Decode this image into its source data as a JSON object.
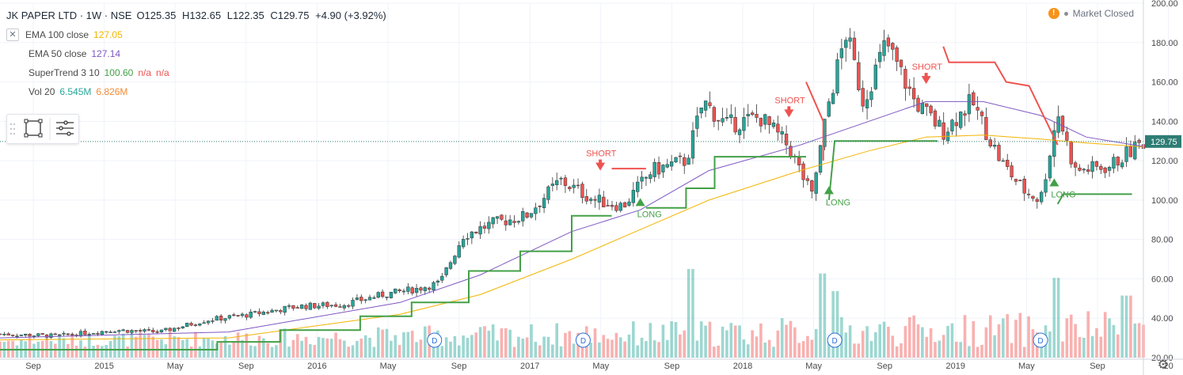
{
  "header": {
    "symbol": "JK PAPER LTD · 1W · NSE",
    "ohlc": {
      "o": "O125.35",
      "h": "H132.65",
      "l": "L122.35",
      "c": "C129.75",
      "chg": "+4.90 (+3.92%)"
    },
    "market_status": "Market Closed"
  },
  "indicators": [
    {
      "name": "EMA 100 close",
      "values": [
        "127.05"
      ],
      "colors": [
        "#f2b400"
      ]
    },
    {
      "name": "EMA 50 close",
      "values": [
        "127.14"
      ],
      "colors": [
        "#7e57c2"
      ]
    },
    {
      "name": "SuperTrend 3 10",
      "values": [
        "100.60",
        "n/a",
        "n/a"
      ],
      "colors": [
        "#43a047",
        "#ef5350",
        "#ef5350"
      ]
    },
    {
      "name": "Vol 20",
      "values": [
        "6.545M",
        "6.826M"
      ],
      "colors": [
        "#26a69a",
        "#f28b36"
      ]
    }
  ],
  "colors": {
    "up": "#26a69a",
    "down": "#ef5350",
    "ema100": "#f2b400",
    "ema50": "#7e57c2",
    "st_up": "#43a047",
    "st_down": "#ef5350",
    "grid": "#f0f3fa",
    "price_tag": "#2e7d74"
  },
  "icons": [
    "rectangle-draw-icon",
    "list-icon",
    "settings-gear-icon",
    "warning-icon"
  ],
  "chart_data": {
    "type": "candlestick",
    "y_axis": {
      "ticks": [
        "20.00",
        "40.00",
        "60.00",
        "80.00",
        "100.00",
        "120.00",
        "140.00",
        "160.00",
        "180.00",
        "200.00"
      ],
      "range": [
        20,
        200
      ],
      "current_price": "129.75"
    },
    "x_axis": {
      "ticks": [
        "Sep",
        "2015",
        "May",
        "Sep",
        "2016",
        "May",
        "Sep",
        "2017",
        "May",
        "Sep",
        "2018",
        "May",
        "Sep",
        "2019",
        "May",
        "Sep",
        "20"
      ]
    },
    "price_path": [
      {
        "t": 0,
        "v": 32
      },
      {
        "t": 0.05,
        "v": 31
      },
      {
        "t": 0.1,
        "v": 34
      },
      {
        "t": 0.14,
        "v": 33
      },
      {
        "t": 0.18,
        "v": 39
      },
      {
        "t": 0.22,
        "v": 42
      },
      {
        "t": 0.26,
        "v": 46
      },
      {
        "t": 0.3,
        "v": 47
      },
      {
        "t": 0.335,
        "v": 52
      },
      {
        "t": 0.365,
        "v": 55
      },
      {
        "t": 0.385,
        "v": 58
      },
      {
        "t": 0.405,
        "v": 82
      },
      {
        "t": 0.43,
        "v": 88
      },
      {
        "t": 0.46,
        "v": 92
      },
      {
        "t": 0.49,
        "v": 110
      },
      {
        "t": 0.52,
        "v": 100
      },
      {
        "t": 0.545,
        "v": 97
      },
      {
        "t": 0.57,
        "v": 115
      },
      {
        "t": 0.6,
        "v": 120
      },
      {
        "t": 0.615,
        "v": 150
      },
      {
        "t": 0.635,
        "v": 138
      },
      {
        "t": 0.665,
        "v": 142
      },
      {
        "t": 0.69,
        "v": 127
      },
      {
        "t": 0.71,
        "v": 102
      },
      {
        "t": 0.725,
        "v": 150
      },
      {
        "t": 0.74,
        "v": 185
      },
      {
        "t": 0.755,
        "v": 150
      },
      {
        "t": 0.775,
        "v": 180
      },
      {
        "t": 0.8,
        "v": 150
      },
      {
        "t": 0.825,
        "v": 135
      },
      {
        "t": 0.85,
        "v": 150
      },
      {
        "t": 0.875,
        "v": 120
      },
      {
        "t": 0.895,
        "v": 105
      },
      {
        "t": 0.91,
        "v": 100
      },
      {
        "t": 0.925,
        "v": 145
      },
      {
        "t": 0.94,
        "v": 115
      },
      {
        "t": 0.97,
        "v": 117
      },
      {
        "t": 1.0,
        "v": 129.75
      }
    ],
    "supertrend": [
      {
        "segment": "up",
        "points": [
          [
            0,
            24
          ],
          [
            0.19,
            24
          ],
          [
            0.19,
            28
          ],
          [
            0.245,
            28
          ],
          [
            0.245,
            34
          ],
          [
            0.315,
            34
          ],
          [
            0.315,
            41
          ],
          [
            0.36,
            41
          ],
          [
            0.36,
            48
          ],
          [
            0.41,
            48
          ],
          [
            0.41,
            64
          ],
          [
            0.455,
            64
          ],
          [
            0.455,
            74
          ],
          [
            0.5,
            74
          ],
          [
            0.5,
            92
          ],
          [
            0.535,
            92
          ]
        ]
      },
      {
        "segment": "down",
        "points": [
          [
            0.535,
            116
          ],
          [
            0.565,
            116
          ]
        ]
      },
      {
        "segment": "up",
        "points": [
          [
            0.565,
            96
          ],
          [
            0.6,
            96
          ],
          [
            0.6,
            106
          ],
          [
            0.625,
            106
          ],
          [
            0.625,
            122
          ],
          [
            0.705,
            122
          ]
        ]
      },
      {
        "segment": "down",
        "points": [
          [
            0.705,
            160
          ],
          [
            0.72,
            140
          ],
          [
            0.72,
            120
          ]
        ]
      },
      {
        "segment": "up",
        "points": [
          [
            0.725,
            100
          ],
          [
            0.73,
            130
          ],
          [
            0.82,
            130
          ]
        ]
      },
      {
        "segment": "down",
        "points": [
          [
            0.825,
            178
          ],
          [
            0.83,
            170
          ],
          [
            0.87,
            170
          ],
          [
            0.88,
            160
          ],
          [
            0.9,
            158
          ],
          [
            0.925,
            128
          ]
        ]
      },
      {
        "segment": "up",
        "points": [
          [
            0.925,
            98
          ],
          [
            0.93,
            103
          ],
          [
            0.99,
            103
          ]
        ]
      }
    ],
    "ema50": [
      [
        0,
        30
      ],
      [
        0.2,
        33
      ],
      [
        0.35,
        48
      ],
      [
        0.42,
        62
      ],
      [
        0.5,
        84
      ],
      [
        0.56,
        95
      ],
      [
        0.62,
        115
      ],
      [
        0.7,
        128
      ],
      [
        0.76,
        140
      ],
      [
        0.81,
        150
      ],
      [
        0.86,
        150
      ],
      [
        0.91,
        143
      ],
      [
        0.95,
        132
      ],
      [
        1.0,
        127.14
      ]
    ],
    "ema100": [
      [
        0,
        29
      ],
      [
        0.2,
        30
      ],
      [
        0.35,
        42
      ],
      [
        0.42,
        52
      ],
      [
        0.5,
        70
      ],
      [
        0.56,
        85
      ],
      [
        0.62,
        100
      ],
      [
        0.7,
        115
      ],
      [
        0.76,
        125
      ],
      [
        0.81,
        132
      ],
      [
        0.86,
        133
      ],
      [
        0.91,
        131
      ],
      [
        0.95,
        129
      ],
      [
        1.0,
        127.05
      ]
    ],
    "signals": [
      {
        "type": "SHORT",
        "t": 0.525,
        "v": 119
      },
      {
        "type": "LONG",
        "t": 0.56,
        "v": 97
      },
      {
        "type": "SHORT",
        "t": 0.69,
        "v": 146
      },
      {
        "type": "LONG",
        "t": 0.725,
        "v": 103
      },
      {
        "type": "SHORT",
        "t": 0.81,
        "v": 163
      },
      {
        "type": "LONG",
        "t": 0.922,
        "v": 107
      }
    ],
    "dividends": [
      {
        "t": 0.38,
        "label": "D"
      },
      {
        "t": 0.51,
        "label": "D"
      },
      {
        "t": 0.73,
        "label": "D"
      },
      {
        "t": 0.91,
        "label": "D"
      }
    ],
    "volume_spikes": [
      {
        "t": 0.605,
        "v": 1.0
      },
      {
        "t": 0.72,
        "v": 0.95
      },
      {
        "t": 0.73,
        "v": 0.75
      },
      {
        "t": 0.925,
        "v": 0.9
      },
      {
        "t": 0.985,
        "v": 0.7
      }
    ]
  }
}
